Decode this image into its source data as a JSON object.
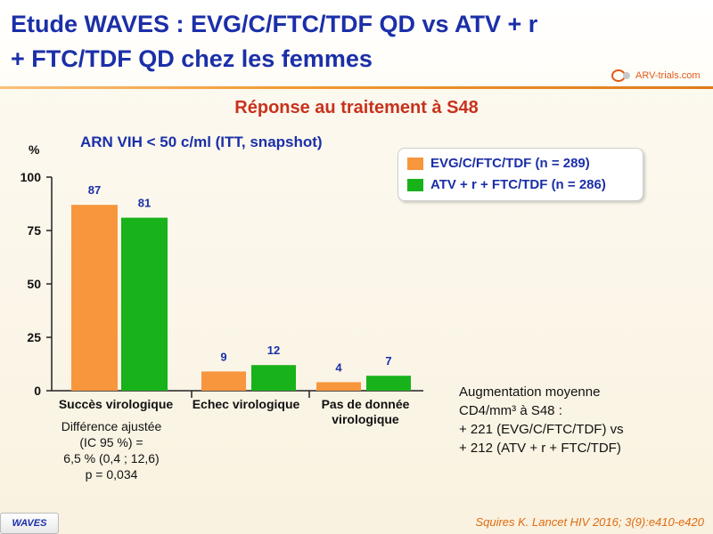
{
  "title_lines": [
    "Etude WAVES : EVG/C/FTC/TDF QD vs ATV + r",
    "+ FTC/TDF QD chez les femmes"
  ],
  "logo": {
    "text": "ARV-trials.com",
    "icon": "logo-icon"
  },
  "subtitle": "Réponse au traitement à S48",
  "y_unit": "%",
  "chart_data": {
    "type": "bar",
    "title": "ARN VIH < 50 c/ml (ITT, snapshot)",
    "ylabel": "%",
    "ylim": [
      0,
      100
    ],
    "yticks": [
      0,
      25,
      50,
      75,
      100
    ],
    "categories": [
      "Succès virologique",
      "Echec virologique",
      "Pas de donnée virologique"
    ],
    "series": [
      {
        "name": "EVG/C/FTC/TDF (n = 289)",
        "color": "#f7963d",
        "values": [
          87,
          9,
          4
        ]
      },
      {
        "name": "ATV + r + FTC/TDF (n = 286)",
        "color": "#18b21a",
        "values": [
          81,
          12,
          7
        ]
      }
    ],
    "legend_position": "top-right",
    "grid": false
  },
  "category_labels": [
    "Succès virologique",
    "Echec virologique",
    "Pas de donnée\nvirologique"
  ],
  "diff_note": [
    "Différence ajustée",
    "(IC 95 %) =",
    "6,5 % (0,4 ; 12,6)",
    "p = 0,034"
  ],
  "cd4_note": [
    "Augmentation moyenne",
    "CD4/mm³ à S48 :",
    "+ 221 (EVG/C/FTC/TDF) vs",
    "+ 212 (ATV + r + FTC/TDF)"
  ],
  "footer": {
    "badge": "WAVES",
    "citation": "Squires K. Lancet HIV 2016; 3(9):e410-e420"
  }
}
